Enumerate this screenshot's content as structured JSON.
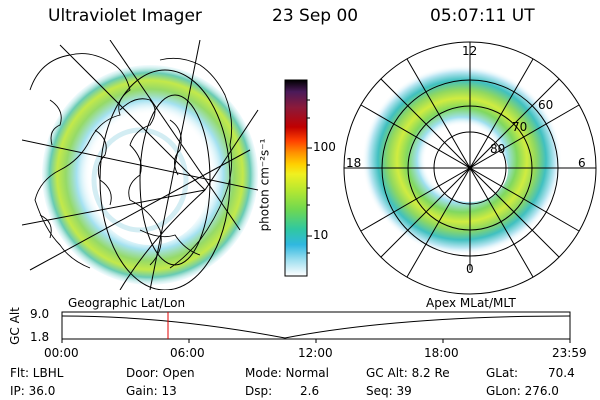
{
  "header": {
    "title": "Ultraviolet Imager",
    "date": "23 Sep 00",
    "time": "05:07:11 UT"
  },
  "colorbar": {
    "unit_label": "photon cm⁻²s⁻¹",
    "ticks": [
      "100",
      "10"
    ],
    "colors": [
      "#000000",
      "#4b1a5a",
      "#8b1a3a",
      "#c00000",
      "#ff4000",
      "#ff9000",
      "#ffd000",
      "#f0f020",
      "#b8e830",
      "#70d850",
      "#30c8a0",
      "#30b8e0",
      "#a0e0f0",
      "#ffffff"
    ]
  },
  "left_panel": {
    "caption": "Geographic Lat/Lon"
  },
  "right_panel": {
    "caption": "Apex MLat/MLT",
    "mlt_labels": {
      "top": "12",
      "left": "18",
      "right": "6",
      "bottom": "0"
    },
    "lat_labels": [
      "60",
      "70",
      "80"
    ]
  },
  "altitude_plot": {
    "ylabel": "GC Alt",
    "yticks": [
      "9.0",
      "1.8"
    ],
    "xticks": [
      "00:00",
      "06:00",
      "12:00",
      "18:00",
      "23:59"
    ],
    "marker_color": "#e00000"
  },
  "info": {
    "filter_label": "Flt: LBHL",
    "ip_label": "IP: 36.0",
    "door_label": "Door: Open",
    "gain_label": "Gain: 13",
    "mode_label": "Mode: Normal",
    "dsp_label": "Dsp:",
    "dsp_value": "2.6",
    "gcalt_label": "GC Alt: 8.2 Re",
    "seq_label": "Seq: 39",
    "glat_label": "GLat:",
    "glat_value": "70.4",
    "glon_label": "GLon: 276.0"
  }
}
